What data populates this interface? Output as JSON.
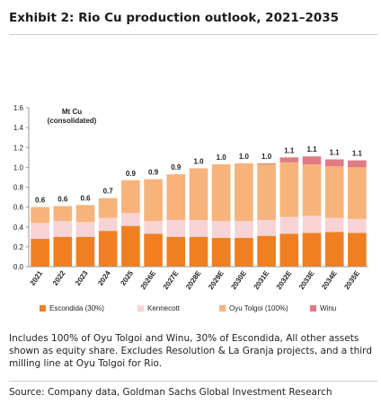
{
  "title": "Exhibit 2: Rio Cu production outlook, 2021–2035",
  "notes": "Includes 100% of Oyu Tolgoi and Winu, 30% of Escondida, All other assets shown as equity share. Excludes Resolution & La Granja projects, and a third milling line at Oyu Tolgoi for Rio.",
  "source": "Source: Company data, Goldman Sachs Global Investment Research",
  "chart_data": {
    "type": "bar",
    "stacked": true,
    "unit_label": [
      "Mt Cu",
      "(consolidated)"
    ],
    "categories": [
      "2021",
      "2022",
      "2023",
      "2024",
      "2025",
      "2026E",
      "2027E",
      "2028E",
      "2029E",
      "2030E",
      "2031E",
      "2032E",
      "2033E",
      "2034E",
      "2035E"
    ],
    "ylim": [
      0,
      1.6
    ],
    "yticks": [
      0.0,
      0.2,
      0.4,
      0.6,
      0.8,
      1.0,
      1.2,
      1.4,
      1.6
    ],
    "ytick_labels": [
      "0.0",
      "0.2",
      "0.4",
      "0.6",
      "0.8",
      "1.0",
      "1.2",
      "1.4",
      "1.6"
    ],
    "grid": false,
    "legend_position": "bottom",
    "series": [
      {
        "name": "Escondida (30%)",
        "color": "#f07f22",
        "values": [
          0.28,
          0.3,
          0.3,
          0.36,
          0.41,
          0.33,
          0.3,
          0.3,
          0.29,
          0.29,
          0.31,
          0.33,
          0.34,
          0.35,
          0.34
        ]
      },
      {
        "name": "Kennecott",
        "color": "#f8d3d6",
        "values": [
          0.16,
          0.16,
          0.15,
          0.13,
          0.13,
          0.13,
          0.17,
          0.17,
          0.17,
          0.17,
          0.16,
          0.17,
          0.17,
          0.14,
          0.14
        ]
      },
      {
        "name": "Oyu Tolgoi  (100%)",
        "color": "#f7b37a",
        "values": [
          0.16,
          0.15,
          0.17,
          0.2,
          0.33,
          0.42,
          0.46,
          0.52,
          0.57,
          0.58,
          0.56,
          0.55,
          0.52,
          0.52,
          0.52
        ]
      },
      {
        "name": "Winu",
        "color": "#e07b86",
        "values": [
          0,
          0,
          0,
          0,
          0,
          0,
          0,
          0,
          0,
          0,
          0.01,
          0.05,
          0.08,
          0.07,
          0.07
        ]
      }
    ],
    "totals": [
      "0.6",
      "0.6",
      "0.6",
      "0.7",
      "0.9",
      "0.9",
      "0.9",
      "1.0",
      "1.0",
      "1.0",
      "1.0",
      "1.1",
      "1.1",
      "1.1",
      "1.1"
    ]
  }
}
